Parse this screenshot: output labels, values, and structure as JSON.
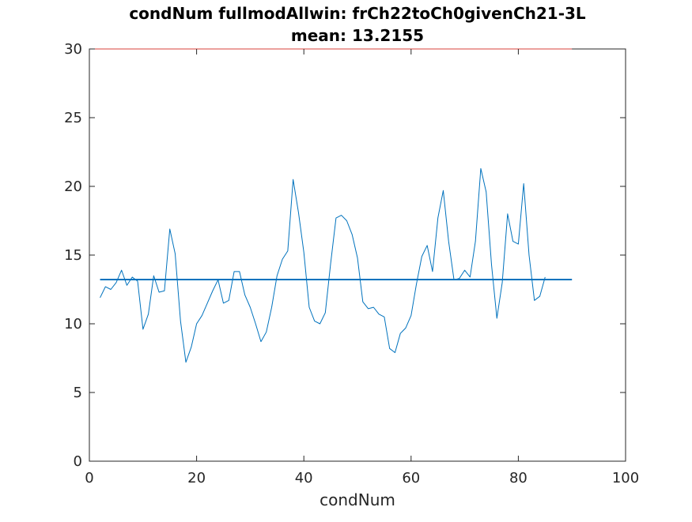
{
  "chart_data": {
    "type": "line",
    "title": "condNum fullmodAllwin: frCh22toCh0givenCh21-3L",
    "subtitle": "mean: 13.2155",
    "xlabel": "condNum",
    "ylabel": "",
    "xlim": [
      0,
      100
    ],
    "ylim": [
      0,
      30
    ],
    "xticks": [
      0,
      20,
      40,
      60,
      80,
      100
    ],
    "yticks": [
      0,
      5,
      10,
      15,
      20,
      25,
      30
    ],
    "grid": false,
    "legend": "none",
    "series": [
      {
        "color": "#0072BD",
        "x": [
          2,
          3,
          4,
          5,
          6,
          7,
          8,
          9,
          10,
          11,
          12,
          13,
          14,
          15,
          16,
          17,
          18,
          19,
          20,
          21,
          22,
          23,
          24,
          25,
          26,
          27,
          28,
          29,
          30,
          31,
          32,
          33,
          34,
          35,
          36,
          37,
          38,
          39,
          40,
          41,
          42,
          43,
          44,
          45,
          46,
          47,
          48,
          49,
          50,
          51,
          52,
          53,
          54,
          55,
          56,
          57,
          58,
          59,
          60,
          61,
          62,
          63,
          64,
          65,
          66,
          67,
          68,
          69,
          70,
          71,
          72,
          73,
          74,
          75,
          76,
          77,
          78,
          79,
          80,
          81,
          82,
          83,
          84,
          85
        ],
        "values": [
          11.9,
          12.7,
          12.5,
          13.0,
          13.9,
          12.8,
          13.4,
          13.1,
          9.6,
          10.7,
          13.5,
          12.3,
          12.4,
          16.9,
          15.1,
          10.2,
          7.2,
          8.3,
          10.0,
          10.6,
          11.5,
          12.4,
          13.2,
          11.5,
          11.7,
          13.8,
          13.8,
          12.1,
          11.2,
          10.0,
          8.7,
          9.4,
          11.2,
          13.5,
          14.7,
          15.3,
          20.5,
          18.1,
          15.2,
          11.2,
          10.2,
          10.0,
          10.8,
          14.4,
          17.7,
          17.9,
          17.5,
          16.5,
          14.8,
          11.6,
          11.1,
          11.2,
          10.7,
          10.5,
          8.2,
          7.9,
          9.3,
          9.7,
          10.6,
          12.9,
          14.9,
          15.7,
          13.8,
          17.7,
          19.7,
          16.0,
          13.2,
          13.3,
          13.9,
          13.4,
          16.0,
          21.3,
          19.6,
          14.3,
          10.4,
          13.0,
          18.0,
          16.0,
          15.8,
          20.2,
          15.0,
          11.7,
          12.0,
          13.4
        ]
      },
      {
        "color": "#0072BD",
        "x": [
          2,
          90
        ],
        "values": [
          13.2155,
          13.2155
        ]
      },
      {
        "color": "#D9413A",
        "x": [
          0,
          90
        ],
        "values": [
          30,
          30
        ]
      }
    ]
  }
}
